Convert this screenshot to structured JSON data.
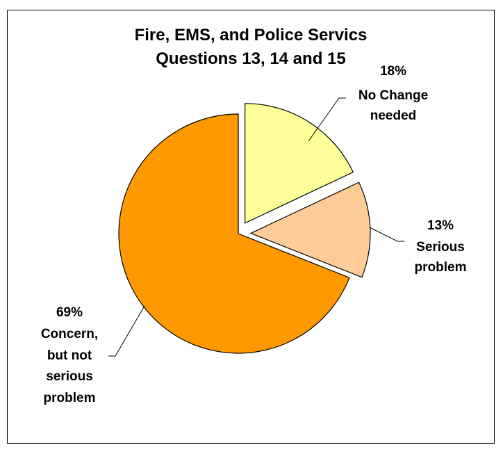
{
  "chart_data": {
    "type": "pie",
    "title_lines": [
      "Fire, EMS, and Police Servics",
      "Questions 13, 14 and 15"
    ],
    "slices": [
      {
        "key": "no-change",
        "percent_label": "18%",
        "label_lines": [
          "No Change",
          "needed"
        ],
        "value": 18,
        "color": "#FFFF99",
        "exploded": true
      },
      {
        "key": "serious",
        "percent_label": "13%",
        "label_lines": [
          "Serious",
          "problem"
        ],
        "value": 13,
        "color": "#FFCC99",
        "exploded": true
      },
      {
        "key": "concern",
        "percent_label": "69%",
        "label_lines": [
          "Concern,",
          "but not",
          "serious",
          "problem"
        ],
        "value": 69,
        "color": "#FF9900",
        "exploded": false
      }
    ]
  }
}
